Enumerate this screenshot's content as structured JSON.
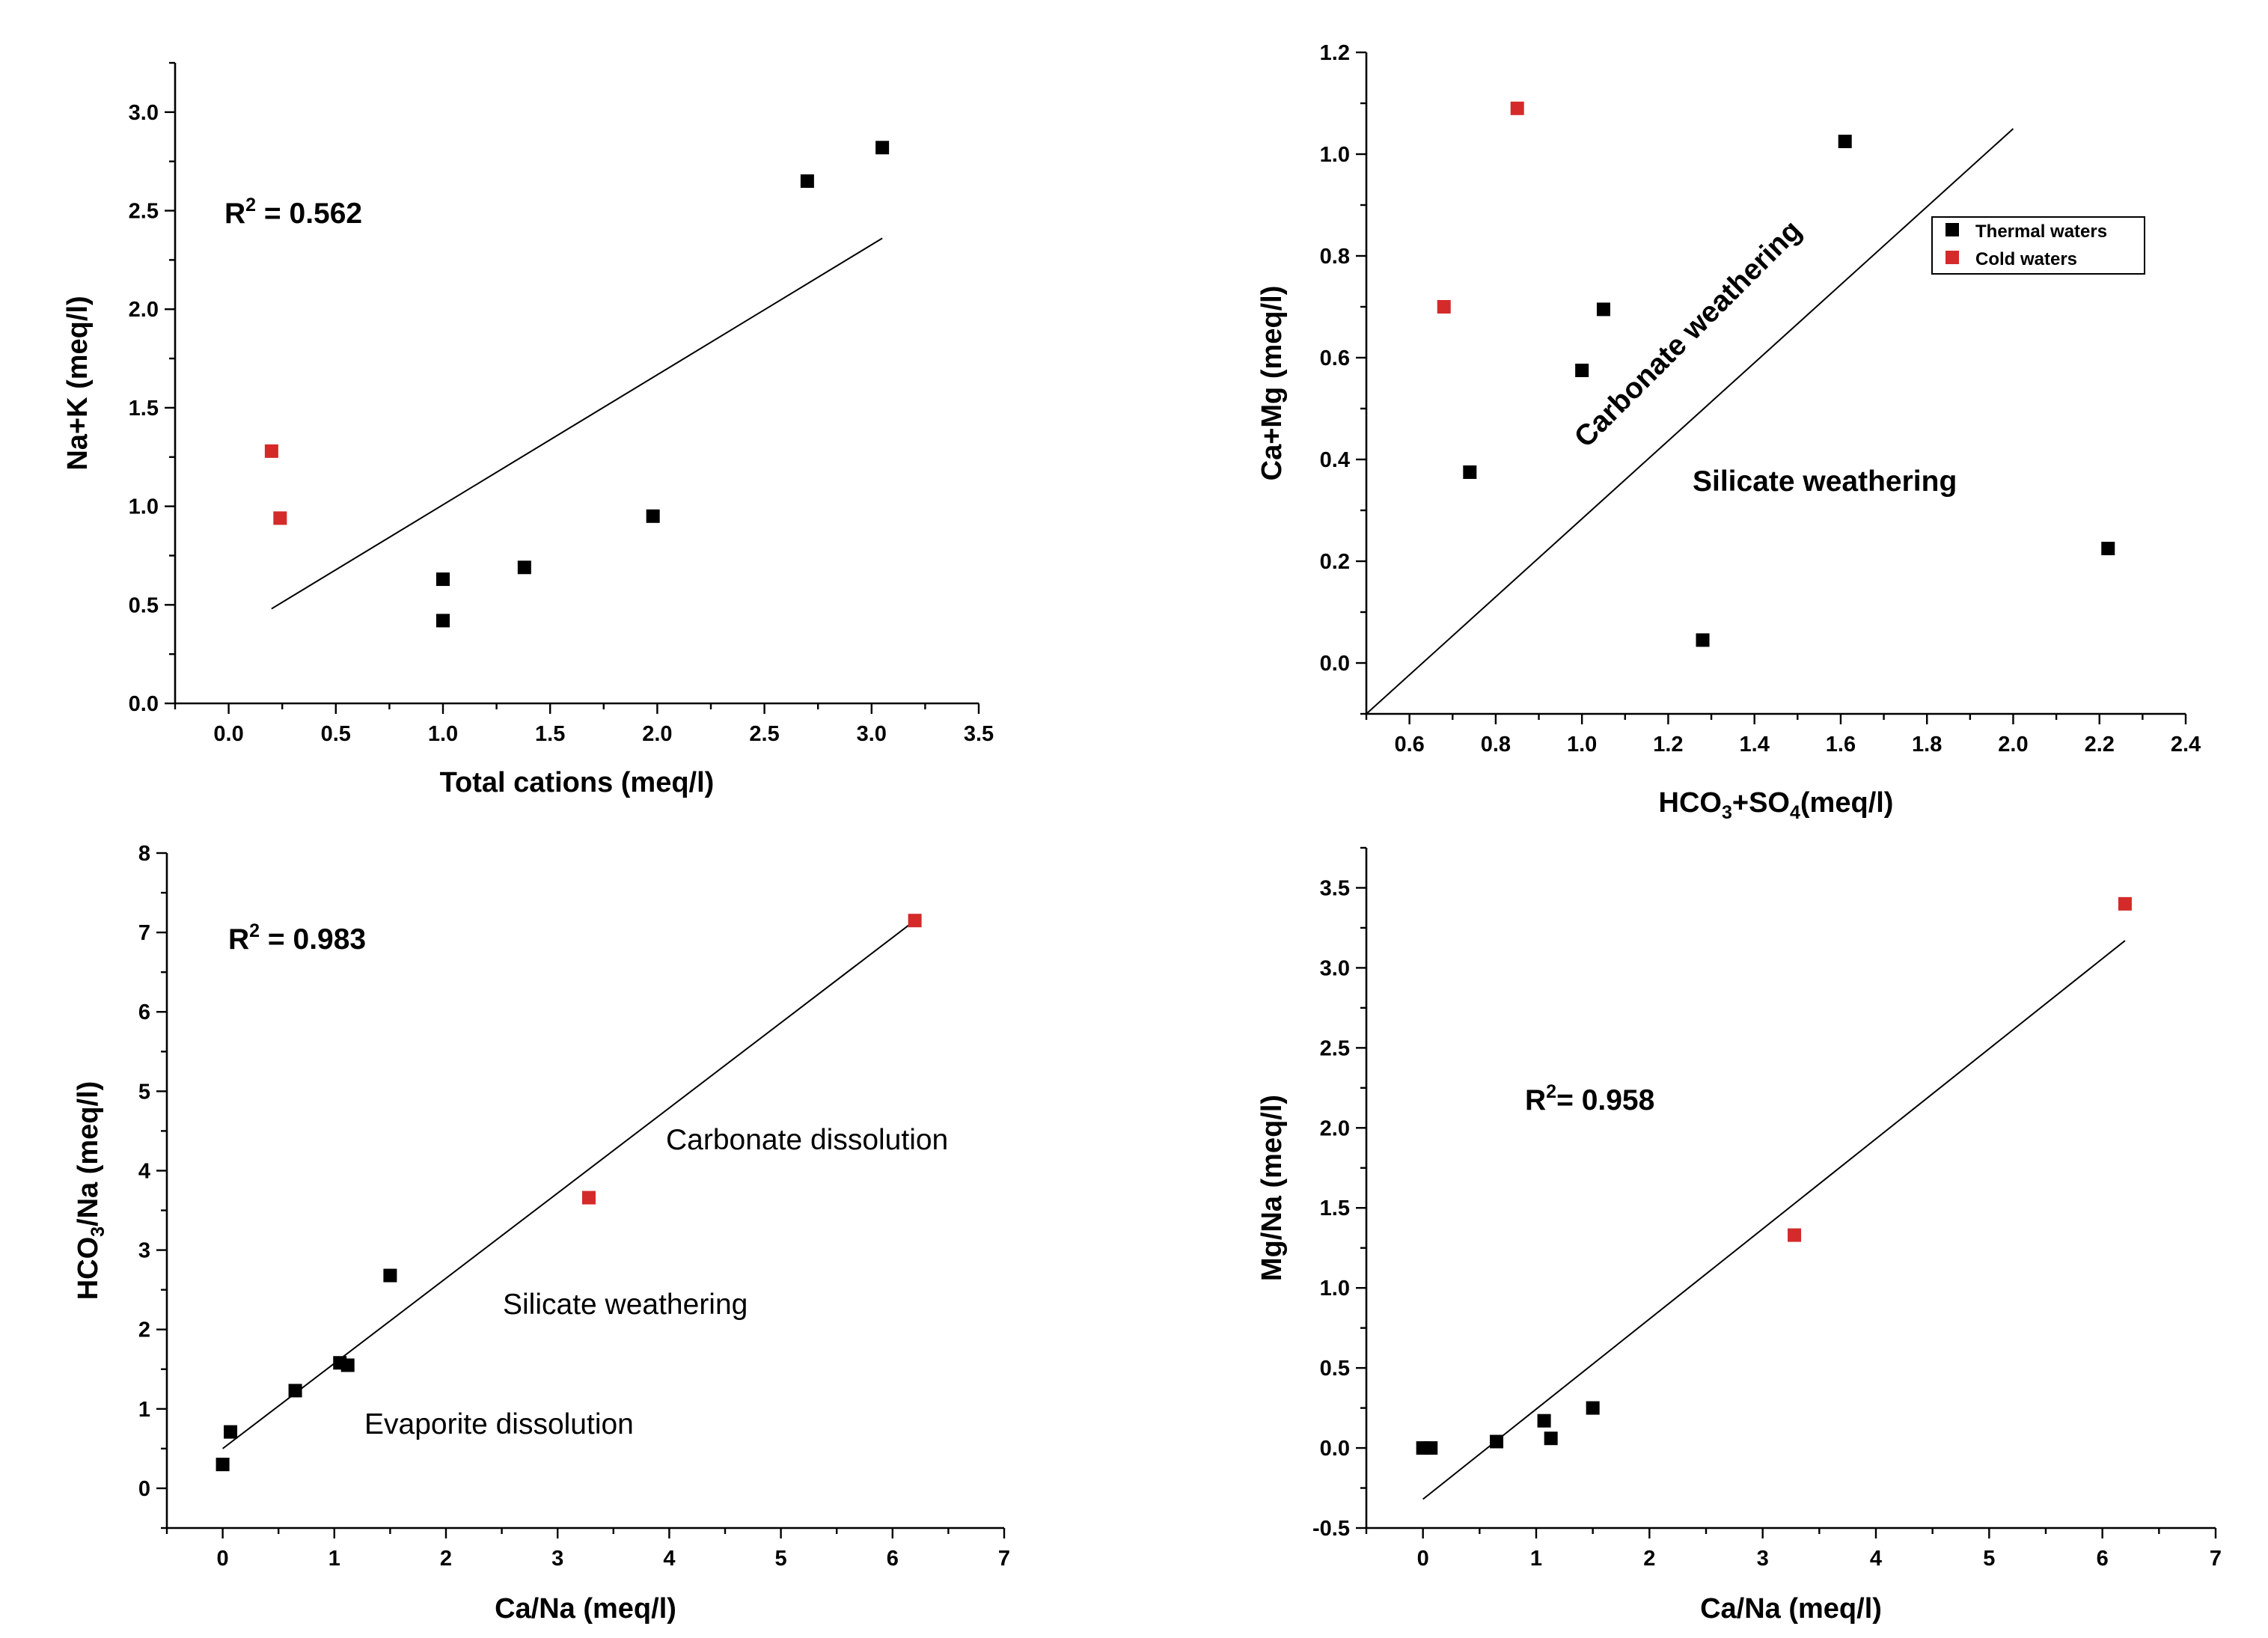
{
  "colors": {
    "thermal": "#000000",
    "cold": "#d42a2a"
  },
  "chart_data": [
    {
      "type": "scatter",
      "id": "na_k_vs_total",
      "xlabel": "Total cations (meq/l)",
      "ylabel": "Na+K (meq/l)",
      "xlim": [
        -0.25,
        3.5
      ],
      "ylim": [
        0,
        3.25
      ],
      "xticks": [
        0.0,
        0.5,
        1.0,
        1.5,
        2.0,
        2.5,
        3.0,
        3.5
      ],
      "xtick_labels": [
        "0.0",
        "0.5",
        "1.0",
        "1.5",
        "2.0",
        "2.5",
        "3.0",
        "3.5"
      ],
      "yticks": [
        0.0,
        0.5,
        1.0,
        1.5,
        2.0,
        2.5,
        3.0
      ],
      "ytick_labels": [
        "0.0",
        "0.5",
        "1.0",
        "1.5",
        "2.0",
        "2.5",
        "3.0"
      ],
      "r2": {
        "prefix": "R",
        "sup": "2",
        "value": " = 0.562"
      },
      "trendline": [
        [
          0.2,
          0.48
        ],
        [
          3.05,
          2.36
        ]
      ],
      "series": [
        {
          "name": "Thermal waters",
          "points": [
            [
              1.0,
              0.42
            ],
            [
              1.0,
              0.63
            ],
            [
              1.38,
              0.69
            ],
            [
              1.98,
              0.95
            ],
            [
              2.7,
              2.65
            ],
            [
              3.05,
              2.82
            ]
          ]
        },
        {
          "name": "Cold waters",
          "points": [
            [
              0.2,
              1.28
            ],
            [
              0.24,
              0.94
            ]
          ]
        }
      ]
    },
    {
      "type": "scatter",
      "id": "camg_vs_hco3so4",
      "xlabel": {
        "parts": [
          "HCO",
          "3",
          "+SO",
          "4",
          "(meq/l)"
        ]
      },
      "ylabel": "Ca+Mg (meq/l)",
      "xlim": [
        0.5,
        2.4
      ],
      "ylim": [
        -0.1,
        1.2
      ],
      "xticks": [
        0.6,
        0.8,
        1.0,
        1.2,
        1.4,
        1.6,
        1.8,
        2.0,
        2.2,
        2.4
      ],
      "xtick_labels": [
        "0.6",
        "0.8",
        "1.0",
        "1.2",
        "1.4",
        "1.6",
        "1.8",
        "2.0",
        "2.2",
        "2.4"
      ],
      "yticks": [
        0.0,
        0.2,
        0.4,
        0.6,
        0.8,
        1.0,
        1.2
      ],
      "ytick_labels": [
        "0.0",
        "0.2",
        "0.4",
        "0.6",
        "0.8",
        "1.0",
        "1.2"
      ],
      "trendline": [
        [
          0.5,
          -0.1
        ],
        [
          2.0,
          1.05
        ]
      ],
      "annotations": [
        "Carbonate weathering",
        "Silicate weathering"
      ],
      "legend": {
        "position": "top-right",
        "entries": [
          "Thermal waters",
          "Cold waters"
        ]
      },
      "series": [
        {
          "name": "Thermal waters",
          "points": [
            [
              0.74,
              0.375
            ],
            [
              1.0,
              0.575
            ],
            [
              1.05,
              0.695
            ],
            [
              1.28,
              0.045
            ],
            [
              1.61,
              1.025
            ],
            [
              2.22,
              0.225
            ]
          ]
        },
        {
          "name": "Cold waters",
          "points": [
            [
              0.68,
              0.7
            ],
            [
              0.85,
              1.09
            ]
          ]
        }
      ]
    },
    {
      "type": "scatter",
      "id": "hco3na_vs_cana",
      "xlabel": "Ca/Na (meq/l)",
      "ylabel": {
        "parts": [
          "HCO",
          "3",
          "/Na (meq/l)"
        ]
      },
      "xlim": [
        -0.5,
        7
      ],
      "ylim": [
        -0.5,
        8
      ],
      "xticks": [
        0,
        1,
        2,
        3,
        4,
        5,
        6,
        7
      ],
      "xtick_labels": [
        "0",
        "1",
        "2",
        "3",
        "4",
        "5",
        "6",
        "7"
      ],
      "yticks": [
        0,
        1,
        2,
        3,
        4,
        5,
        6,
        7,
        8
      ],
      "ytick_labels": [
        "0",
        "1",
        "2",
        "3",
        "4",
        "5",
        "6",
        "7",
        "8"
      ],
      "r2": {
        "prefix": "R",
        "sup": "2",
        "value": " = 0.983"
      },
      "trendline": [
        [
          0.0,
          0.5
        ],
        [
          6.2,
          7.15
        ]
      ],
      "annotations": [
        "Carbonate dissolution",
        "Silicate weathering",
        "Evaporite dissolution"
      ],
      "series": [
        {
          "name": "Thermal waters",
          "points": [
            [
              0.0,
              0.3
            ],
            [
              0.07,
              0.71
            ],
            [
              0.65,
              1.23
            ],
            [
              1.05,
              1.58
            ],
            [
              1.12,
              1.55
            ],
            [
              1.5,
              2.68
            ]
          ]
        },
        {
          "name": "Cold waters",
          "points": [
            [
              3.28,
              3.66
            ],
            [
              6.2,
              7.15
            ]
          ]
        }
      ]
    },
    {
      "type": "scatter",
      "id": "mgna_vs_cana",
      "xlabel": "Ca/Na (meq/l)",
      "ylabel": "Mg/Na (meq/l)",
      "xlim": [
        -0.5,
        7
      ],
      "ylim": [
        -0.5,
        3.75
      ],
      "xticks": [
        0,
        1,
        2,
        3,
        4,
        5,
        6,
        7
      ],
      "xtick_labels": [
        "0",
        "1",
        "2",
        "3",
        "4",
        "5",
        "6",
        "7"
      ],
      "yticks": [
        -0.5,
        0.0,
        0.5,
        1.0,
        1.5,
        2.0,
        2.5,
        3.0,
        3.5
      ],
      "ytick_labels": [
        "-0.5",
        "0.0",
        "0.5",
        "1.0",
        "1.5",
        "2.0",
        "2.5",
        "3.0",
        "3.5"
      ],
      "r2": {
        "prefix": "R",
        "sup": "2",
        "value": "= 0.958"
      },
      "trendline": [
        [
          0.0,
          -0.32
        ],
        [
          6.2,
          3.17
        ]
      ],
      "series": [
        {
          "name": "Thermal waters",
          "points": [
            [
              0.0,
              0.0
            ],
            [
              0.07,
              0.0
            ],
            [
              0.65,
              0.04
            ],
            [
              1.07,
              0.17
            ],
            [
              1.13,
              0.06
            ],
            [
              1.5,
              0.25
            ]
          ]
        },
        {
          "name": "Cold waters",
          "points": [
            [
              3.28,
              1.33
            ],
            [
              6.2,
              3.4
            ]
          ]
        }
      ]
    }
  ]
}
